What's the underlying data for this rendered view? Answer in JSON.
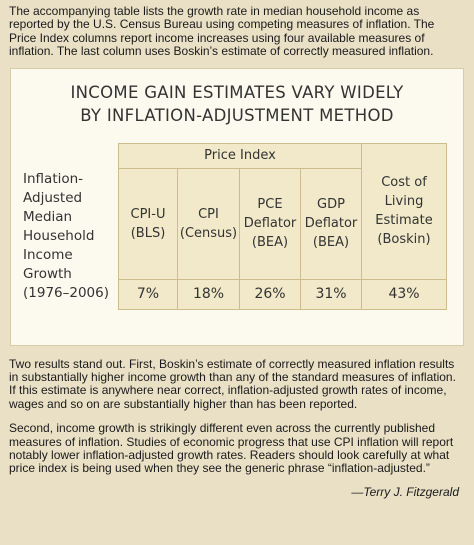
{
  "intro": "The accompanying table lists the growth rate in median household income as reported by the U.S. Census Bureau using competing measures of inflation. The Price Index columns report income increases using four available measures of inflation. The last column uses Boskin’s estimate of correctly measured inflation.",
  "table": {
    "title": [
      "INCOME GAIN ESTIMATES VARY WIDELY",
      "BY INFLATION-ADJUSTMENT METHOD"
    ],
    "group_header": "Price Index",
    "row_header": [
      "Inflation-",
      "Adjusted",
      "Median",
      "Household",
      "Income",
      "Growth",
      "(1976–2006)"
    ],
    "columns": [
      [
        "CPI-U",
        "(BLS)"
      ],
      [
        "CPI",
        "(Census)"
      ],
      [
        "PCE",
        "Deflator",
        "(BEA)"
      ],
      [
        "GDP",
        "Deflator",
        "(BEA)"
      ],
      [
        "Cost of",
        "Living",
        "Estimate",
        "(Boskin)"
      ]
    ],
    "values": [
      "7%",
      "18%",
      "26%",
      "31%",
      "43%"
    ]
  },
  "paragraphs": [
    "Two results stand out. First, Boskin’s estimate of correctly measured inflation results in substantially higher income growth than any of the standard measures of inflation. If this estimate is anywhere near correct, inflation-adjusted growth rates of income, wages and so on are substantially higher than has been reported.",
    "Second, income growth is strikingly different even across the currently published measures of inflation. Studies of economic progress that use CPI inflation will report notably lower inflation-adjusted growth rates. Readers should look carefully at what price index is being used when they see the generic phrase “inflation-adjusted.”"
  ],
  "signature": "—Terry J. Fitzgerald"
}
